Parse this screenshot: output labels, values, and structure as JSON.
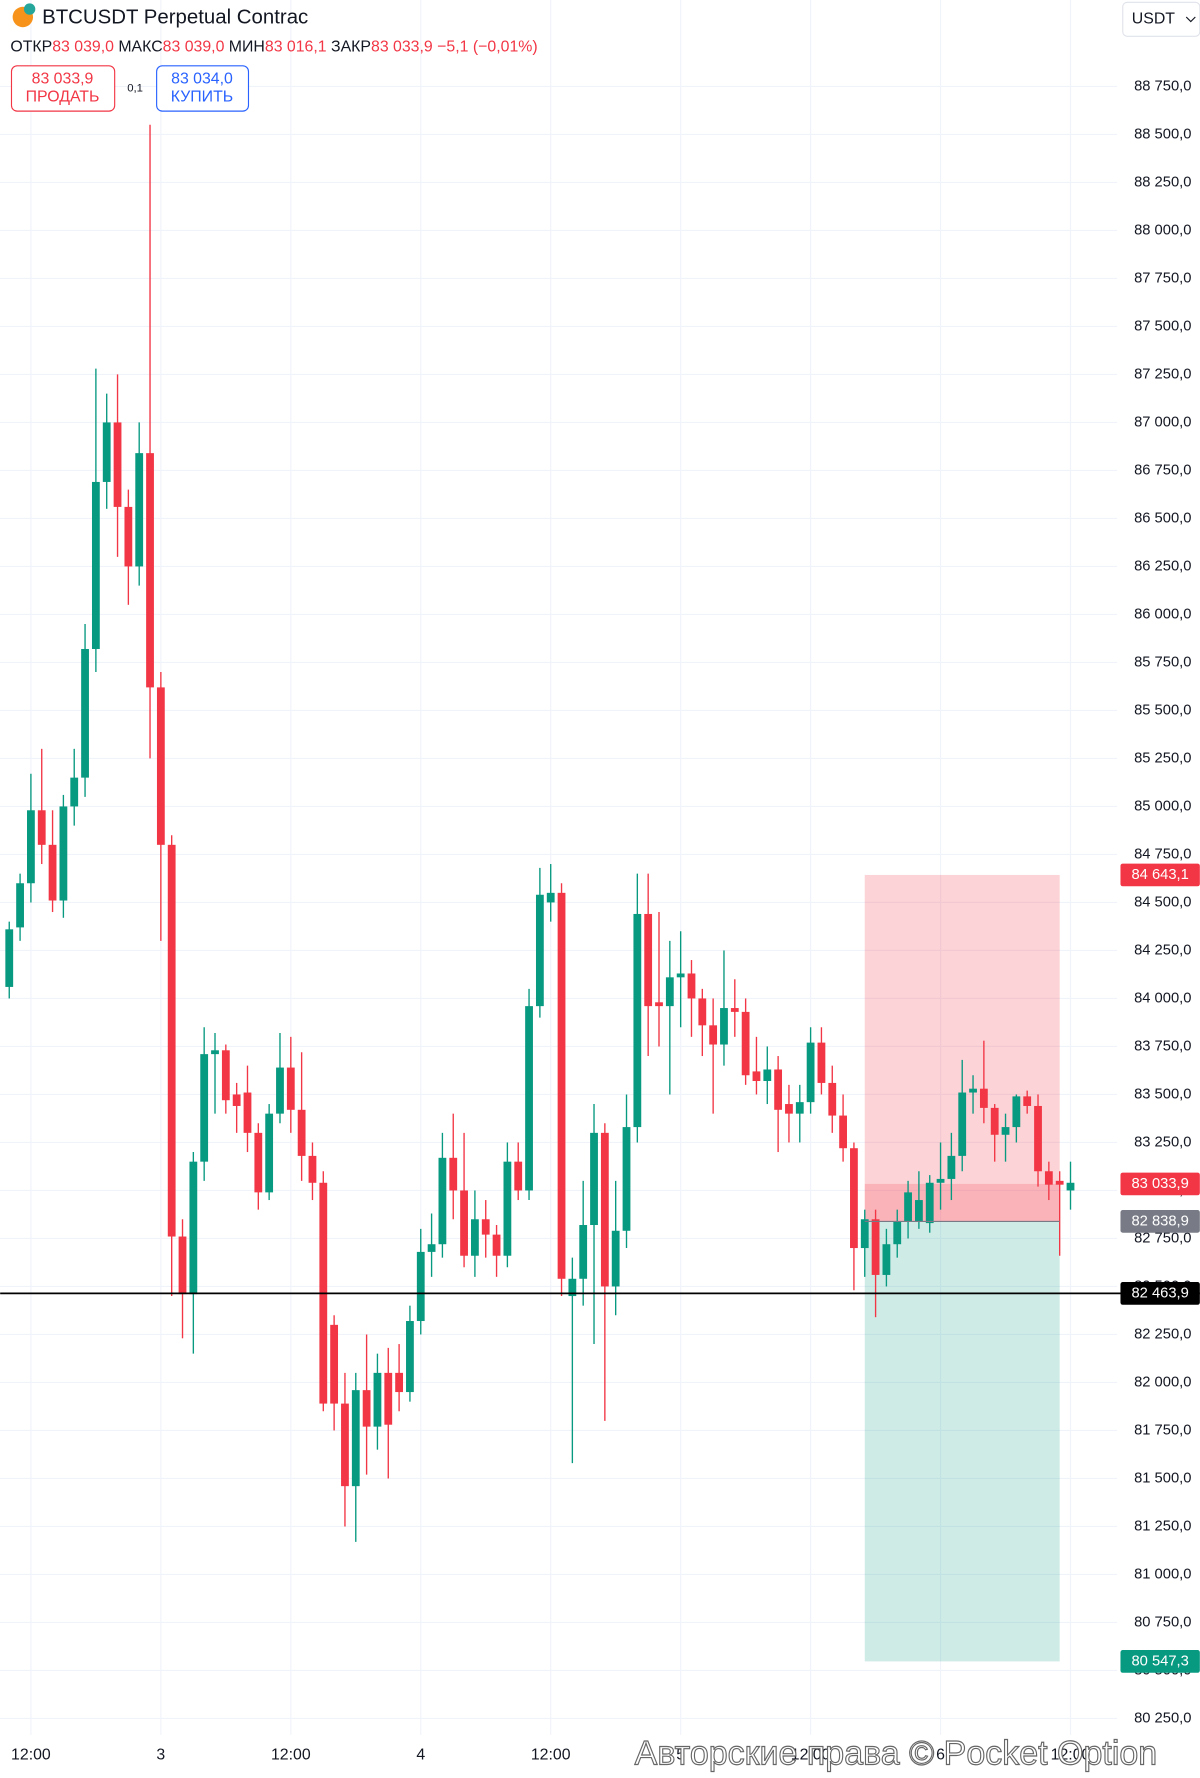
{
  "header": {
    "title": "BTCUSDT Perpetual Contrac",
    "currency": "USDT",
    "ohlc": [
      "ОТКР",
      "83 039,0",
      "МАКС",
      "83 039,0",
      "МИН",
      "83 016,1",
      "ЗАКР",
      "83 033,9",
      "−5,1 (−0,01%)"
    ],
    "sell": {
      "price": "83 033,9",
      "label": "ПРОДАТЬ"
    },
    "spread": "0,1",
    "buy": {
      "price": "83 034,0",
      "label": "КУПИТЬ"
    }
  },
  "watermark": "Авторские права © Pocket Option",
  "chart_data": {
    "type": "candlestick",
    "up_color": "#089981",
    "down_color": "#f23645",
    "grid": true,
    "x": [
      0,
      1,
      2,
      3,
      4,
      5,
      6,
      7,
      8,
      9,
      10,
      11,
      12,
      13,
      14,
      15,
      16,
      17,
      18,
      19,
      20,
      21,
      22,
      23,
      24,
      25,
      26,
      27,
      28,
      29,
      30,
      31,
      32,
      33,
      34,
      35,
      36,
      37,
      38,
      39,
      40,
      41,
      42,
      43,
      44,
      45,
      46,
      47,
      48,
      49,
      50,
      51,
      52,
      53,
      54,
      55,
      56,
      57,
      58,
      59,
      60,
      61,
      62,
      63,
      64,
      65,
      66,
      67,
      68,
      69,
      70,
      71,
      72,
      73,
      74,
      75,
      76,
      77,
      78,
      79,
      80,
      81,
      82,
      83,
      84,
      85,
      86,
      87,
      88,
      89,
      90,
      91,
      92,
      93,
      94,
      95,
      96,
      97,
      98
    ],
    "open": [
      84060,
      84370,
      84600,
      84980,
      84800,
      84510,
      85000,
      85150,
      85820,
      86690,
      87000,
      86560,
      86250,
      86840,
      85620,
      84800,
      82760,
      82460,
      83150,
      83710,
      83730,
      83500,
      83510,
      83300,
      82990,
      83400,
      83640,
      83420,
      83180,
      83040,
      82300,
      81890,
      81460,
      81960,
      81770,
      82050,
      82050,
      81950,
      82320,
      82680,
      82720,
      83170,
      83000,
      82660,
      82850,
      82770,
      82660,
      83150,
      83000,
      83960,
      84500,
      84550,
      82450,
      82540,
      82820,
      83300,
      82500,
      82790,
      83330,
      84440,
      83980,
      83960,
      84110,
      84130,
      84000,
      83860,
      83760,
      83950,
      83930,
      83620,
      83570,
      83630,
      83450,
      83400,
      83460,
      83770,
      83560,
      83390,
      83220,
      82700,
      82850,
      82560,
      82720,
      82840,
      82840,
      82830,
      83040,
      83060,
      83180,
      83510,
      83530,
      83430,
      83290,
      83330,
      83490,
      83440,
      83100,
      83050,
      83000
    ],
    "high": [
      84400,
      84650,
      85170,
      85300,
      84980,
      85060,
      85300,
      85950,
      87280,
      87150,
      87250,
      86650,
      87000,
      88550,
      85700,
      84850,
      82850,
      83200,
      83850,
      83820,
      83760,
      83560,
      83650,
      83350,
      83450,
      83820,
      83800,
      83720,
      83250,
      83100,
      82350,
      82050,
      82050,
      82250,
      82150,
      82180,
      82200,
      82400,
      82800,
      82880,
      83300,
      83400,
      83300,
      83000,
      82950,
      82820,
      83250,
      83250,
      84050,
      84680,
      84700,
      84600,
      82650,
      83050,
      83450,
      83350,
      83050,
      83500,
      84650,
      84650,
      84450,
      84300,
      84350,
      84200,
      84050,
      84000,
      84250,
      84100,
      84000,
      83800,
      83750,
      83700,
      83550,
      83550,
      83850,
      83850,
      83650,
      83500,
      83250,
      82900,
      82900,
      82800,
      82900,
      83050,
      83100,
      83080,
      83250,
      83300,
      83680,
      83600,
      83780,
      83450,
      83400,
      83500,
      83520,
      83500,
      83150,
      83100,
      83150
    ],
    "low": [
      84000,
      84300,
      84500,
      84700,
      84450,
      84420,
      84900,
      85050,
      85700,
      86550,
      86300,
      86050,
      86150,
      85250,
      84300,
      82450,
      82230,
      82150,
      83050,
      83400,
      83400,
      83300,
      83200,
      82900,
      82950,
      83350,
      83300,
      83050,
      82950,
      81850,
      81750,
      81250,
      81170,
      81520,
      81650,
      81500,
      81850,
      81900,
      82250,
      82550,
      82650,
      82850,
      82600,
      82550,
      82650,
      82550,
      82600,
      82950,
      82950,
      83900,
      84400,
      82450,
      81580,
      82400,
      82200,
      81800,
      82350,
      82700,
      83250,
      83700,
      83750,
      83500,
      83850,
      83800,
      83700,
      83400,
      83650,
      83800,
      83550,
      83500,
      83450,
      83200,
      83250,
      83250,
      83400,
      83500,
      83300,
      83150,
      82480,
      82550,
      82340,
      82500,
      82650,
      82750,
      82800,
      82780,
      82900,
      82950,
      83100,
      83400,
      83350,
      83150,
      83150,
      83250,
      83400,
      83020,
      82950,
      82660,
      82900
    ],
    "close": [
      84360,
      84600,
      84980,
      84800,
      84510,
      85000,
      85150,
      85820,
      86690,
      87000,
      86560,
      86250,
      86840,
      85620,
      84800,
      82760,
      82460,
      83150,
      83710,
      83730,
      83470,
      83440,
      83300,
      82990,
      83400,
      83640,
      83420,
      83180,
      83040,
      81890,
      81890,
      81460,
      81960,
      81770,
      82050,
      81780,
      81950,
      82320,
      82680,
      82720,
      83170,
      83000,
      82660,
      82850,
      82770,
      82660,
      83150,
      83000,
      83960,
      84540,
      84550,
      82540,
      82540,
      82820,
      83300,
      82500,
      82790,
      83330,
      84440,
      83960,
      83960,
      84110,
      84130,
      84000,
      83860,
      83760,
      83950,
      83930,
      83600,
      83570,
      83630,
      83420,
      83400,
      83460,
      83770,
      83560,
      83390,
      83220,
      82700,
      82850,
      82560,
      82720,
      82840,
      82990,
      82950,
      83040,
      83060,
      83180,
      83510,
      83530,
      83430,
      83290,
      83330,
      83490,
      83440,
      83100,
      83030,
      83030,
      83040
    ],
    "xlim": [
      -0.84,
      102.3
    ],
    "xticks": [
      {
        "value": 2,
        "label": "12:00"
      },
      {
        "value": 14,
        "label": "3"
      },
      {
        "value": 26,
        "label": "12:00"
      },
      {
        "value": 38,
        "label": "4"
      },
      {
        "value": 50,
        "label": "12:00"
      },
      {
        "value": 62,
        "label": "5"
      },
      {
        "value": 74,
        "label": "12:00"
      },
      {
        "value": 86,
        "label": "6"
      },
      {
        "value": 98,
        "label": "12:00"
      }
    ],
    "ylim": [
      79940,
      89200
    ],
    "yticks": [
      {
        "value": 80250,
        "label": "80 250,0"
      },
      {
        "value": 80500,
        "label": "80 500,0"
      },
      {
        "value": 80750,
        "label": "80 750,0"
      },
      {
        "value": 81000,
        "label": "81 000,0"
      },
      {
        "value": 81250,
        "label": "81 250,0"
      },
      {
        "value": 81500,
        "label": "81 500,0"
      },
      {
        "value": 81750,
        "label": "81 750,0"
      },
      {
        "value": 82000,
        "label": "82 000,0"
      },
      {
        "value": 82250,
        "label": "82 250,0"
      },
      {
        "value": 82500,
        "label": "82 500,0"
      },
      {
        "value": 82750,
        "label": "82 750,0"
      },
      {
        "value": 83000,
        "label": "83 000,0"
      },
      {
        "value": 83250,
        "label": "83 250,0"
      },
      {
        "value": 83500,
        "label": "83 500,0"
      },
      {
        "value": 83750,
        "label": "83 750,0"
      },
      {
        "value": 84000,
        "label": "84 000,0"
      },
      {
        "value": 84250,
        "label": "84 250,0"
      },
      {
        "value": 84500,
        "label": "84 500,0"
      },
      {
        "value": 84750,
        "label": "84 750,0"
      },
      {
        "value": 85000,
        "label": "85 000,0"
      },
      {
        "value": 85250,
        "label": "85 250,0"
      },
      {
        "value": 85500,
        "label": "85 500,0"
      },
      {
        "value": 85750,
        "label": "85 750,0"
      },
      {
        "value": 86000,
        "label": "86 000,0"
      },
      {
        "value": 86250,
        "label": "86 250,0"
      },
      {
        "value": 86500,
        "label": "86 500,0"
      },
      {
        "value": 86750,
        "label": "86 750,0"
      },
      {
        "value": 87000,
        "label": "87 000,0"
      },
      {
        "value": 87250,
        "label": "87 250,0"
      },
      {
        "value": 87500,
        "label": "87 500,0"
      },
      {
        "value": 87750,
        "label": "87 750,0"
      },
      {
        "value": 88000,
        "label": "88 000,0"
      },
      {
        "value": 88250,
        "label": "88 250,0"
      },
      {
        "value": 88500,
        "label": "88 500,0"
      },
      {
        "value": 88750,
        "label": "88 750,0"
      }
    ],
    "position": {
      "start": 79,
      "end": 97,
      "stop": {
        "value": 84643.1,
        "label": "84 643,1",
        "color": "#f23645"
      },
      "current": {
        "value": 83033.9,
        "label": "83 033,9",
        "color": "#f23645"
      },
      "entry": {
        "value": 82838.9,
        "label": "82 838,9",
        "color": "#787b86"
      },
      "target": {
        "value": 80547.3,
        "label": "80 547,3",
        "color": "#089981"
      }
    },
    "horizontal_line": {
      "value": 82463.9,
      "label": "82 463,9",
      "color": "#000000"
    }
  }
}
